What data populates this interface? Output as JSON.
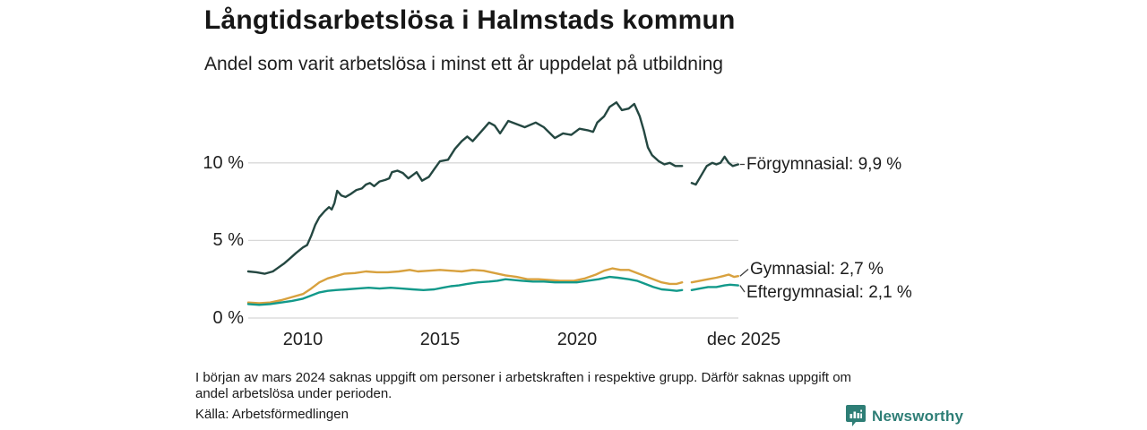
{
  "header": {
    "title": "Långtidsarbetslösa i Halmstads kommun",
    "subtitle": "Andel som varit arbetslösa i minst ett år uppdelat på utbildning"
  },
  "chart_data": {
    "type": "line",
    "title": "Långtidsarbetslösa i Halmstads kommun",
    "subtitle": "Andel som varit arbetslösa i minst ett år uppdelat på utbildning",
    "unit": "%",
    "grid": true,
    "legend_position": "end-of-line-labels",
    "x_axis": {
      "range_years": [
        2008,
        2026
      ],
      "ticks": [
        {
          "label": "2010",
          "year": 2010
        },
        {
          "label": "2015",
          "year": 2015
        },
        {
          "label": "2020",
          "year": 2020
        },
        {
          "label": "dec 2025",
          "year": 2025.92
        }
      ]
    },
    "y_axis": {
      "range": [
        0,
        14.5
      ],
      "ticks": [
        {
          "label": "0 %",
          "value": 0
        },
        {
          "label": "5 %",
          "value": 5
        },
        {
          "label": "10 %",
          "value": 10
        }
      ]
    },
    "data_gap": "early 2024 (mars 2024)",
    "series": [
      {
        "name": "Förgymnasial",
        "end_label": "Förgymnasial: 9,9 %",
        "latest_value": "9,9 %",
        "color": "#244741",
        "points": [
          [
            2008.0,
            3.0
          ],
          [
            2008.3,
            2.95
          ],
          [
            2008.6,
            2.85
          ],
          [
            2008.9,
            3.0
          ],
          [
            2009.1,
            3.25
          ],
          [
            2009.3,
            3.5
          ],
          [
            2009.5,
            3.8
          ],
          [
            2009.75,
            4.2
          ],
          [
            2010.0,
            4.55
          ],
          [
            2010.15,
            4.7
          ],
          [
            2010.3,
            5.3
          ],
          [
            2010.45,
            6.0
          ],
          [
            2010.6,
            6.5
          ],
          [
            2010.8,
            6.9
          ],
          [
            2010.95,
            7.15
          ],
          [
            2011.05,
            7.0
          ],
          [
            2011.15,
            7.4
          ],
          [
            2011.25,
            8.2
          ],
          [
            2011.4,
            7.9
          ],
          [
            2011.55,
            7.8
          ],
          [
            2011.75,
            8.0
          ],
          [
            2011.95,
            8.25
          ],
          [
            2012.15,
            8.35
          ],
          [
            2012.3,
            8.6
          ],
          [
            2012.45,
            8.7
          ],
          [
            2012.6,
            8.5
          ],
          [
            2012.8,
            8.8
          ],
          [
            2013.0,
            8.9
          ],
          [
            2013.15,
            9.0
          ],
          [
            2013.25,
            9.4
          ],
          [
            2013.45,
            9.5
          ],
          [
            2013.65,
            9.35
          ],
          [
            2013.85,
            9.0
          ],
          [
            2014.0,
            9.2
          ],
          [
            2014.15,
            9.4
          ],
          [
            2014.35,
            8.85
          ],
          [
            2014.6,
            9.1
          ],
          [
            2014.8,
            9.6
          ],
          [
            2015.0,
            10.1
          ],
          [
            2015.3,
            10.2
          ],
          [
            2015.55,
            10.9
          ],
          [
            2015.8,
            11.4
          ],
          [
            2016.0,
            11.7
          ],
          [
            2016.2,
            11.4
          ],
          [
            2016.5,
            12.0
          ],
          [
            2016.8,
            12.6
          ],
          [
            2017.0,
            12.4
          ],
          [
            2017.2,
            11.9
          ],
          [
            2017.5,
            12.7
          ],
          [
            2017.8,
            12.5
          ],
          [
            2018.1,
            12.3
          ],
          [
            2018.5,
            12.6
          ],
          [
            2018.8,
            12.3
          ],
          [
            2019.2,
            11.6
          ],
          [
            2019.5,
            11.9
          ],
          [
            2019.8,
            11.8
          ],
          [
            2020.1,
            12.2
          ],
          [
            2020.4,
            12.1
          ],
          [
            2020.6,
            12.0
          ],
          [
            2020.75,
            12.6
          ],
          [
            2021.0,
            13.0
          ],
          [
            2021.2,
            13.6
          ],
          [
            2021.45,
            13.9
          ],
          [
            2021.65,
            13.4
          ],
          [
            2021.9,
            13.5
          ],
          [
            2022.1,
            13.8
          ],
          [
            2022.3,
            13.0
          ],
          [
            2022.45,
            12.1
          ],
          [
            2022.6,
            11.0
          ],
          [
            2022.75,
            10.5
          ],
          [
            2023.0,
            10.1
          ],
          [
            2023.2,
            9.9
          ],
          [
            2023.4,
            10.0
          ],
          [
            2023.6,
            9.8
          ],
          [
            2023.85,
            9.8
          ],
          null,
          [
            2024.2,
            8.7
          ],
          [
            2024.35,
            8.6
          ],
          [
            2024.55,
            9.2
          ],
          [
            2024.75,
            9.8
          ],
          [
            2024.95,
            10.0
          ],
          [
            2025.1,
            9.9
          ],
          [
            2025.25,
            10.0
          ],
          [
            2025.4,
            10.4
          ],
          [
            2025.55,
            10.0
          ],
          [
            2025.7,
            9.8
          ],
          [
            2025.9,
            9.9
          ]
        ]
      },
      {
        "name": "Gymnasial",
        "end_label": "Gymnasial: 2,7 %",
        "latest_value": "2,7 %",
        "color": "#d8a13e",
        "points": [
          [
            2008.0,
            1.0
          ],
          [
            2008.4,
            0.95
          ],
          [
            2008.8,
            1.0
          ],
          [
            2009.2,
            1.15
          ],
          [
            2009.6,
            1.35
          ],
          [
            2010.0,
            1.55
          ],
          [
            2010.3,
            1.9
          ],
          [
            2010.6,
            2.3
          ],
          [
            2010.9,
            2.55
          ],
          [
            2011.2,
            2.7
          ],
          [
            2011.5,
            2.85
          ],
          [
            2011.9,
            2.9
          ],
          [
            2012.3,
            3.0
          ],
          [
            2012.7,
            2.95
          ],
          [
            2013.1,
            2.95
          ],
          [
            2013.5,
            3.0
          ],
          [
            2013.9,
            3.1
          ],
          [
            2014.2,
            3.0
          ],
          [
            2014.6,
            3.05
          ],
          [
            2015.0,
            3.1
          ],
          [
            2015.4,
            3.05
          ],
          [
            2015.8,
            3.0
          ],
          [
            2016.2,
            3.1
          ],
          [
            2016.6,
            3.05
          ],
          [
            2017.0,
            2.9
          ],
          [
            2017.4,
            2.75
          ],
          [
            2017.8,
            2.65
          ],
          [
            2018.2,
            2.5
          ],
          [
            2018.6,
            2.5
          ],
          [
            2019.0,
            2.45
          ],
          [
            2019.4,
            2.4
          ],
          [
            2019.9,
            2.4
          ],
          [
            2020.3,
            2.55
          ],
          [
            2020.7,
            2.8
          ],
          [
            2021.0,
            3.05
          ],
          [
            2021.3,
            3.2
          ],
          [
            2021.6,
            3.1
          ],
          [
            2021.9,
            3.1
          ],
          [
            2022.2,
            2.9
          ],
          [
            2022.5,
            2.7
          ],
          [
            2022.8,
            2.5
          ],
          [
            2023.1,
            2.3
          ],
          [
            2023.4,
            2.2
          ],
          [
            2023.65,
            2.2
          ],
          [
            2023.85,
            2.3
          ],
          null,
          [
            2024.2,
            2.3
          ],
          [
            2024.5,
            2.4
          ],
          [
            2024.8,
            2.5
          ],
          [
            2025.1,
            2.6
          ],
          [
            2025.35,
            2.7
          ],
          [
            2025.55,
            2.8
          ],
          [
            2025.75,
            2.65
          ],
          [
            2025.9,
            2.7
          ]
        ]
      },
      {
        "name": "Eftergymnasial",
        "end_label": "Eftergymnasial: 2,1 %",
        "latest_value": "2,1 %",
        "color": "#12998a",
        "points": [
          [
            2008.0,
            0.9
          ],
          [
            2008.4,
            0.85
          ],
          [
            2008.8,
            0.9
          ],
          [
            2009.2,
            1.0
          ],
          [
            2009.6,
            1.1
          ],
          [
            2010.0,
            1.25
          ],
          [
            2010.3,
            1.45
          ],
          [
            2010.6,
            1.65
          ],
          [
            2010.9,
            1.75
          ],
          [
            2011.2,
            1.8
          ],
          [
            2011.6,
            1.85
          ],
          [
            2012.0,
            1.9
          ],
          [
            2012.4,
            1.95
          ],
          [
            2012.8,
            1.9
          ],
          [
            2013.2,
            1.95
          ],
          [
            2013.6,
            1.9
          ],
          [
            2014.0,
            1.85
          ],
          [
            2014.4,
            1.8
          ],
          [
            2014.8,
            1.85
          ],
          [
            2015.1,
            1.95
          ],
          [
            2015.4,
            2.05
          ],
          [
            2015.7,
            2.1
          ],
          [
            2016.0,
            2.2
          ],
          [
            2016.4,
            2.3
          ],
          [
            2016.8,
            2.35
          ],
          [
            2017.1,
            2.4
          ],
          [
            2017.4,
            2.5
          ],
          [
            2017.7,
            2.45
          ],
          [
            2018.0,
            2.4
          ],
          [
            2018.4,
            2.35
          ],
          [
            2018.8,
            2.35
          ],
          [
            2019.2,
            2.3
          ],
          [
            2019.6,
            2.3
          ],
          [
            2020.0,
            2.3
          ],
          [
            2020.4,
            2.4
          ],
          [
            2020.8,
            2.5
          ],
          [
            2021.2,
            2.65
          ],
          [
            2021.5,
            2.6
          ],
          [
            2021.9,
            2.5
          ],
          [
            2022.2,
            2.4
          ],
          [
            2022.5,
            2.2
          ],
          [
            2022.8,
            2.0
          ],
          [
            2023.1,
            1.85
          ],
          [
            2023.4,
            1.8
          ],
          [
            2023.65,
            1.75
          ],
          [
            2023.85,
            1.8
          ],
          null,
          [
            2024.2,
            1.8
          ],
          [
            2024.5,
            1.9
          ],
          [
            2024.8,
            2.0
          ],
          [
            2025.1,
            2.0
          ],
          [
            2025.4,
            2.1
          ],
          [
            2025.6,
            2.15
          ],
          [
            2025.9,
            2.1
          ]
        ]
      }
    ],
    "colors": {
      "grid": "#d8d8d8",
      "text": "#1a1a1a",
      "connector": "#3c3c3c"
    }
  },
  "footnote": {
    "line1": "I början av mars 2024 saknas uppgift om personer i arbetskraften i respektive grupp. Därför saknas uppgift om",
    "line2": "andel arbetslösa under perioden."
  },
  "source": {
    "text": "Källa: Arbetsförmedlingen"
  },
  "branding": {
    "name": "Newsworthy",
    "color": "#2e7e76",
    "icon": "bar-chart-speech-bubble-icon"
  }
}
